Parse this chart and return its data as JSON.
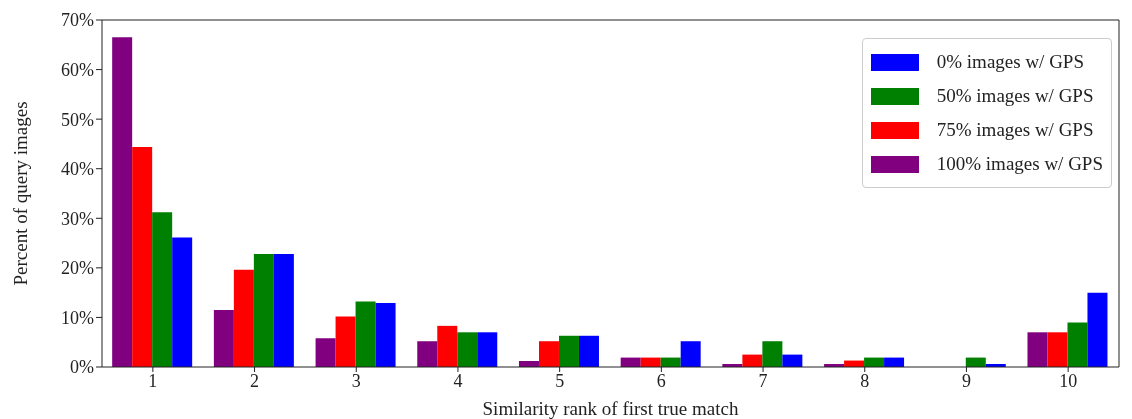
{
  "chart_data": {
    "type": "bar",
    "xlabel": "Similarity rank of first true match",
    "ylabel": "Percent of query images",
    "categories": [
      "1",
      "2",
      "3",
      "4",
      "5",
      "6",
      "7",
      "8",
      "9",
      "10"
    ],
    "series": [
      {
        "name": "100% images w/ GPS",
        "color": "#800080",
        "values": [
          66.5,
          11.5,
          5.8,
          5.2,
          1.2,
          1.9,
          0.6,
          0.6,
          0,
          7.0
        ]
      },
      {
        "name": "75% images w/ GPS",
        "color": "#ff0000",
        "values": [
          44.4,
          19.6,
          10.2,
          8.3,
          5.2,
          1.9,
          2.5,
          1.3,
          0,
          7.0
        ]
      },
      {
        "name": "50% images w/ GPS",
        "color": "#008000",
        "values": [
          31.2,
          22.8,
          13.2,
          7.0,
          6.3,
          1.9,
          5.2,
          1.9,
          1.9,
          9.0
        ]
      },
      {
        "name": "0% images w/ GPS",
        "color": "#0000ff",
        "values": [
          26.1,
          22.8,
          12.9,
          7.0,
          6.3,
          5.2,
          2.5,
          1.9,
          0.6,
          15.0
        ]
      }
    ],
    "ylim": [
      0,
      70
    ],
    "yticks": [
      {
        "value": 0,
        "label": "0%"
      },
      {
        "value": 10,
        "label": "10%"
      },
      {
        "value": 20,
        "label": "20%"
      },
      {
        "value": 30,
        "label": "30%"
      },
      {
        "value": 40,
        "label": "40%"
      },
      {
        "value": 50,
        "label": "50%"
      },
      {
        "value": 60,
        "label": "60%"
      },
      {
        "value": 70,
        "label": "70%"
      }
    ],
    "grid": false,
    "legend": "top right"
  }
}
